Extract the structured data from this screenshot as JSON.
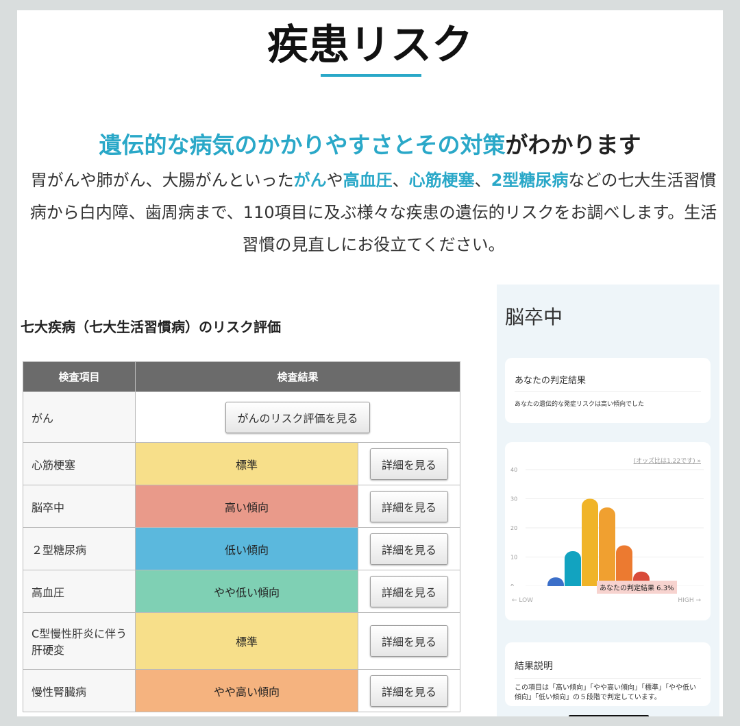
{
  "title": "疾患リスク",
  "subtitle": {
    "hl": "遺伝的な病気のかかりやすさとその対策",
    "rest": "がわかります"
  },
  "paragraph": {
    "p1": "胃がんや肺がん、大腸がんといった",
    "h1": "がん",
    "p2": "や",
    "h2": "高血圧",
    "p3": "、",
    "h3": "心筋梗塞",
    "p4": "、",
    "h4": "2型糖尿病",
    "p5": "などの七大生活習慣病から白内障、歯周病まで、110項目に及ぶ様々な疾患の遺伝的リスクをお調べします。生活習慣の見直しにお役立てください。"
  },
  "table": {
    "heading": "七大疾病（七大生活習慣病）のリスク評価",
    "headers": [
      "検査項目",
      "検査結果"
    ],
    "cancer": {
      "name": "がん",
      "button": "がんのリスク評価を見る"
    },
    "rows": [
      {
        "name": "心筋梗塞",
        "result": "標準",
        "color": "#f7df8a",
        "button": "詳細を見る"
      },
      {
        "name": "脳卒中",
        "result": "高い傾向",
        "color": "#e99a8a",
        "button": "詳細を見る"
      },
      {
        "name": "２型糖尿病",
        "result": "低い傾向",
        "color": "#5bb8dd",
        "button": "詳細を見る"
      },
      {
        "name": "高血圧",
        "result": "やや低い傾向",
        "color": "#7fd0b4",
        "button": "詳細を見る"
      },
      {
        "name": "C型慢性肝炎に伴う肝硬変",
        "result": "標準",
        "color": "#f7df8a",
        "button": "詳細を見る"
      },
      {
        "name": "慢性腎臓病",
        "result": "やや高い傾向",
        "color": "#f5b37f",
        "button": "詳細を見る"
      }
    ]
  },
  "phone": {
    "title": "脳卒中",
    "card1": {
      "title": "あなたの判定結果",
      "text": "あなたの遺伝的な発症リスクは高い傾向でした"
    },
    "odds": "(オッズ比は1.22です) »",
    "low": "← LOW",
    "high": "HIGH →",
    "result_label": "あなたの判定結果 6.3%",
    "card3": {
      "title": "結果説明",
      "text": "この項目は「高い傾向」「やや高い傾向」「標準」「やや低い傾向」「低い傾向」の５段階で判定しています。"
    }
  },
  "chart_data": {
    "type": "bar",
    "values": [
      3,
      12,
      30,
      27,
      14,
      5
    ],
    "ylim": [
      0,
      40
    ],
    "yticks": [
      0,
      10,
      20,
      30,
      40
    ],
    "colors": [
      "#3b6fc9",
      "#12a3c0",
      "#f0b428",
      "#f0a030",
      "#ec7a30",
      "#d94b3a"
    ],
    "grid": true
  }
}
